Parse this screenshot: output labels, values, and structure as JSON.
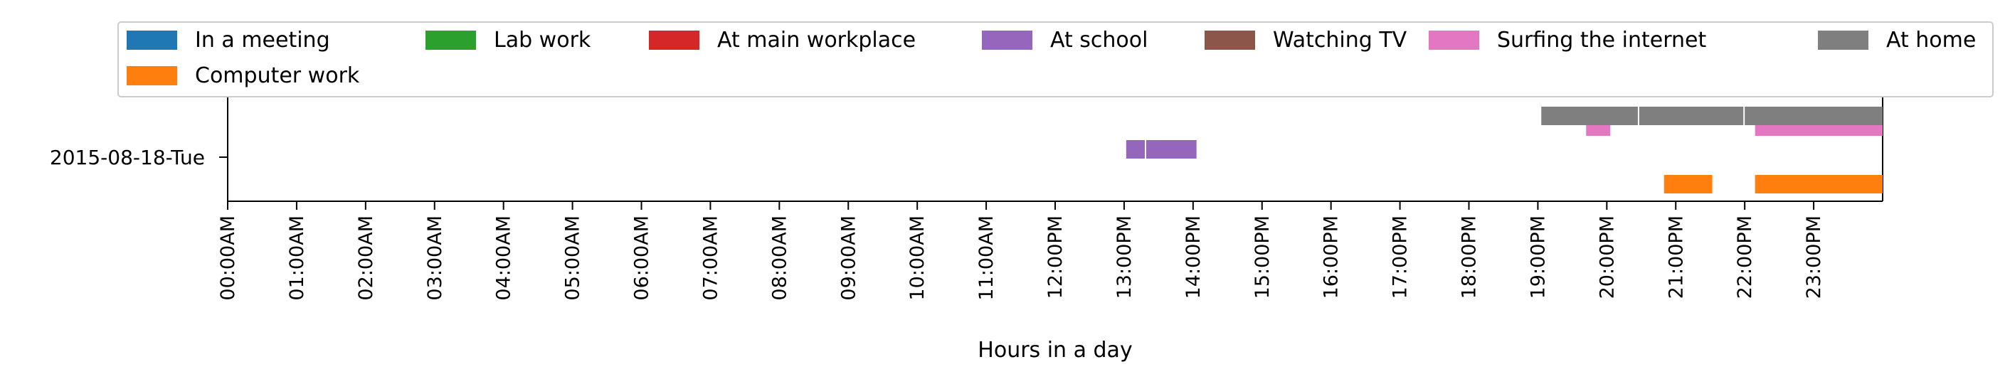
{
  "chart_data": {
    "type": "timeline",
    "xlabel": "Hours in a day",
    "ylabel": "",
    "xlim": [
      0,
      24
    ],
    "categories": [
      "2015-08-18-Tue"
    ],
    "x_ticks": [
      "00:00AM",
      "01:00AM",
      "02:00AM",
      "03:00AM",
      "04:00AM",
      "05:00AM",
      "06:00AM",
      "07:00AM",
      "08:00AM",
      "09:00AM",
      "10:00AM",
      "11:00AM",
      "12:00PM",
      "13:00PM",
      "14:00PM",
      "15:00PM",
      "16:00PM",
      "17:00PM",
      "18:00PM",
      "19:00PM",
      "20:00PM",
      "21:00PM",
      "22:00PM",
      "23:00PM"
    ],
    "legend_placement": "top",
    "grid": false,
    "series": [
      {
        "name": "In a meeting",
        "color": "#1f77b4",
        "lane": 3,
        "intervals": []
      },
      {
        "name": "Computer work",
        "color": "#ff7f0e",
        "lane": 0,
        "intervals": [
          [
            20.83,
            21.53
          ],
          [
            22.15,
            24.0
          ]
        ]
      },
      {
        "name": "Lab work",
        "color": "#2ca02c",
        "lane": 4,
        "intervals": []
      },
      {
        "name": "At main workplace",
        "color": "#d62728",
        "lane": 5,
        "intervals": []
      },
      {
        "name": "At school",
        "color": "#9467bd",
        "lane": 2,
        "intervals": [
          [
            13.03,
            13.3
          ],
          [
            13.32,
            14.05
          ]
        ]
      },
      {
        "name": "Watching TV",
        "color": "#8c564b",
        "lane": 6,
        "intervals": []
      },
      {
        "name": "Surfing the internet",
        "color": "#e377c2",
        "lane": 1,
        "intervals": [
          [
            19.7,
            20.05
          ],
          [
            22.15,
            24.0
          ]
        ]
      },
      {
        "name": "At home",
        "color": "#7f7f7f",
        "lane": 1,
        "intervals": [
          [
            19.05,
            20.45
          ],
          [
            20.47,
            21.98
          ],
          [
            22.0,
            24.0
          ]
        ]
      }
    ]
  }
}
